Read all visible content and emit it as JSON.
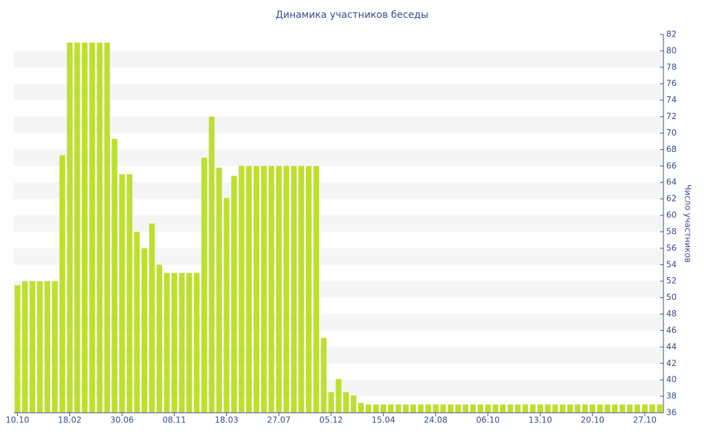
{
  "chart_data": {
    "type": "bar",
    "title": "Динамика участников беседы",
    "y_label": "Число участников",
    "categories": [
      "10.10",
      null,
      null,
      null,
      null,
      null,
      null,
      "18.02",
      null,
      null,
      null,
      null,
      null,
      null,
      "30.06",
      null,
      null,
      null,
      null,
      null,
      null,
      "08.11",
      null,
      null,
      null,
      null,
      null,
      null,
      "18.03",
      null,
      null,
      null,
      null,
      null,
      null,
      "27.07",
      null,
      null,
      null,
      null,
      null,
      null,
      "05.12",
      null,
      null,
      null,
      null,
      null,
      null,
      "15.04",
      null,
      null,
      null,
      null,
      null,
      null,
      "24.08",
      null,
      null,
      null,
      null,
      null,
      null,
      "06.10",
      null,
      null,
      null,
      null,
      null,
      null,
      "13.10",
      null,
      null,
      null,
      null,
      null,
      null,
      "20.10",
      null,
      null,
      null,
      null,
      null,
      null,
      "27.10",
      null,
      null
    ],
    "values": [
      51.5,
      52,
      52,
      52,
      52,
      52,
      67.3,
      81,
      81,
      81,
      81,
      81,
      81,
      69.3,
      65,
      65,
      58,
      56,
      59,
      54,
      53,
      53,
      53,
      53,
      53,
      67,
      72,
      65.8,
      62.1,
      64.8,
      66,
      66,
      66,
      66,
      66,
      66,
      66,
      66,
      66,
      66,
      66,
      45.1,
      38.5,
      40.1,
      38.5,
      38.1,
      37.2,
      37,
      37,
      37,
      37,
      37,
      37,
      37,
      37,
      37,
      37,
      37,
      37,
      37,
      37,
      37,
      37,
      37,
      37,
      37,
      37,
      37,
      37,
      37,
      37,
      37,
      37,
      37,
      37,
      37,
      37,
      37,
      37,
      37,
      37,
      37,
      37,
      37,
      37,
      37,
      37
    ],
    "color": "#bde02e",
    "ylim": [
      36,
      82
    ],
    "yticks": [
      36,
      38,
      40,
      42,
      44,
      46,
      48,
      50,
      52,
      54,
      56,
      58,
      60,
      62,
      64,
      66,
      68,
      70,
      72,
      74,
      76,
      78,
      80,
      82
    ],
    "y_axis_side": "right",
    "stripes": true
  }
}
